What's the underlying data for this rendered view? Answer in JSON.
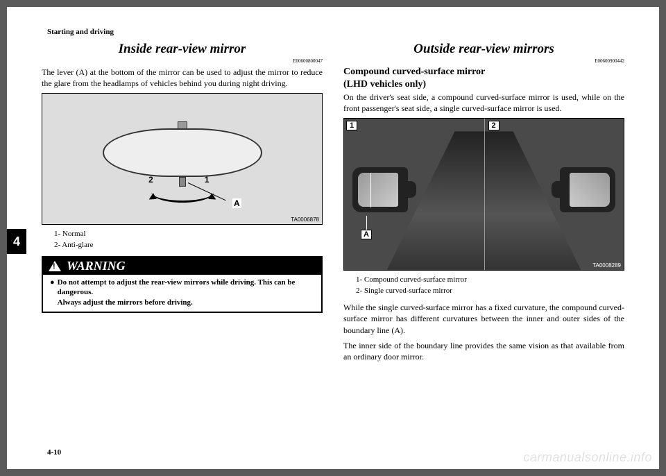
{
  "header": "Starting and driving",
  "side_tab": "4",
  "page_number": "4-10",
  "watermark": "carmanualsonline.info",
  "left": {
    "title": "Inside rear-view mirror",
    "code": "E00600800047",
    "intro": "The lever (A) at the bottom of the mirror can be used to adjust the mirror to reduce the glare from the headlamps of vehicles behind you during night driving.",
    "figure_code": "TA0006878",
    "fig_labels": {
      "one": "1",
      "two": "2",
      "A": "A"
    },
    "legend1": "1-  Normal",
    "legend2": "2-  Anti-glare",
    "warning_title": "WARNING",
    "warning_bullet": "●",
    "warning_line1": "Do not attempt to adjust the rear-view mirrors while driving. This can be dangerous.",
    "warning_line2": "Always adjust the mirrors before driving."
  },
  "right": {
    "title": "Outside rear-view mirrors",
    "code": "E00600900442",
    "sub1": "Compound curved-surface mirror",
    "sub2": "(LHD vehicles only)",
    "intro": "On the driver's seat side, a compound curved-surface mirror is used, while on the front passenger's seat side, a single curved-surface mirror is used.",
    "figure_code": "TA0008289",
    "fig_labels": {
      "one": "1",
      "two": "2",
      "A": "A"
    },
    "legend1": "1-  Compound curved-surface mirror",
    "legend2": "2-  Single curved-surface mirror",
    "para1": "While the single curved-surface mirror has a fixed curvature, the compound curved-surface mirror has different curvatures between the inner and outer sides of the boundary line (A).",
    "para2": "The inner side of the boundary line provides the same vision as that available from an ordinary door mirror."
  }
}
